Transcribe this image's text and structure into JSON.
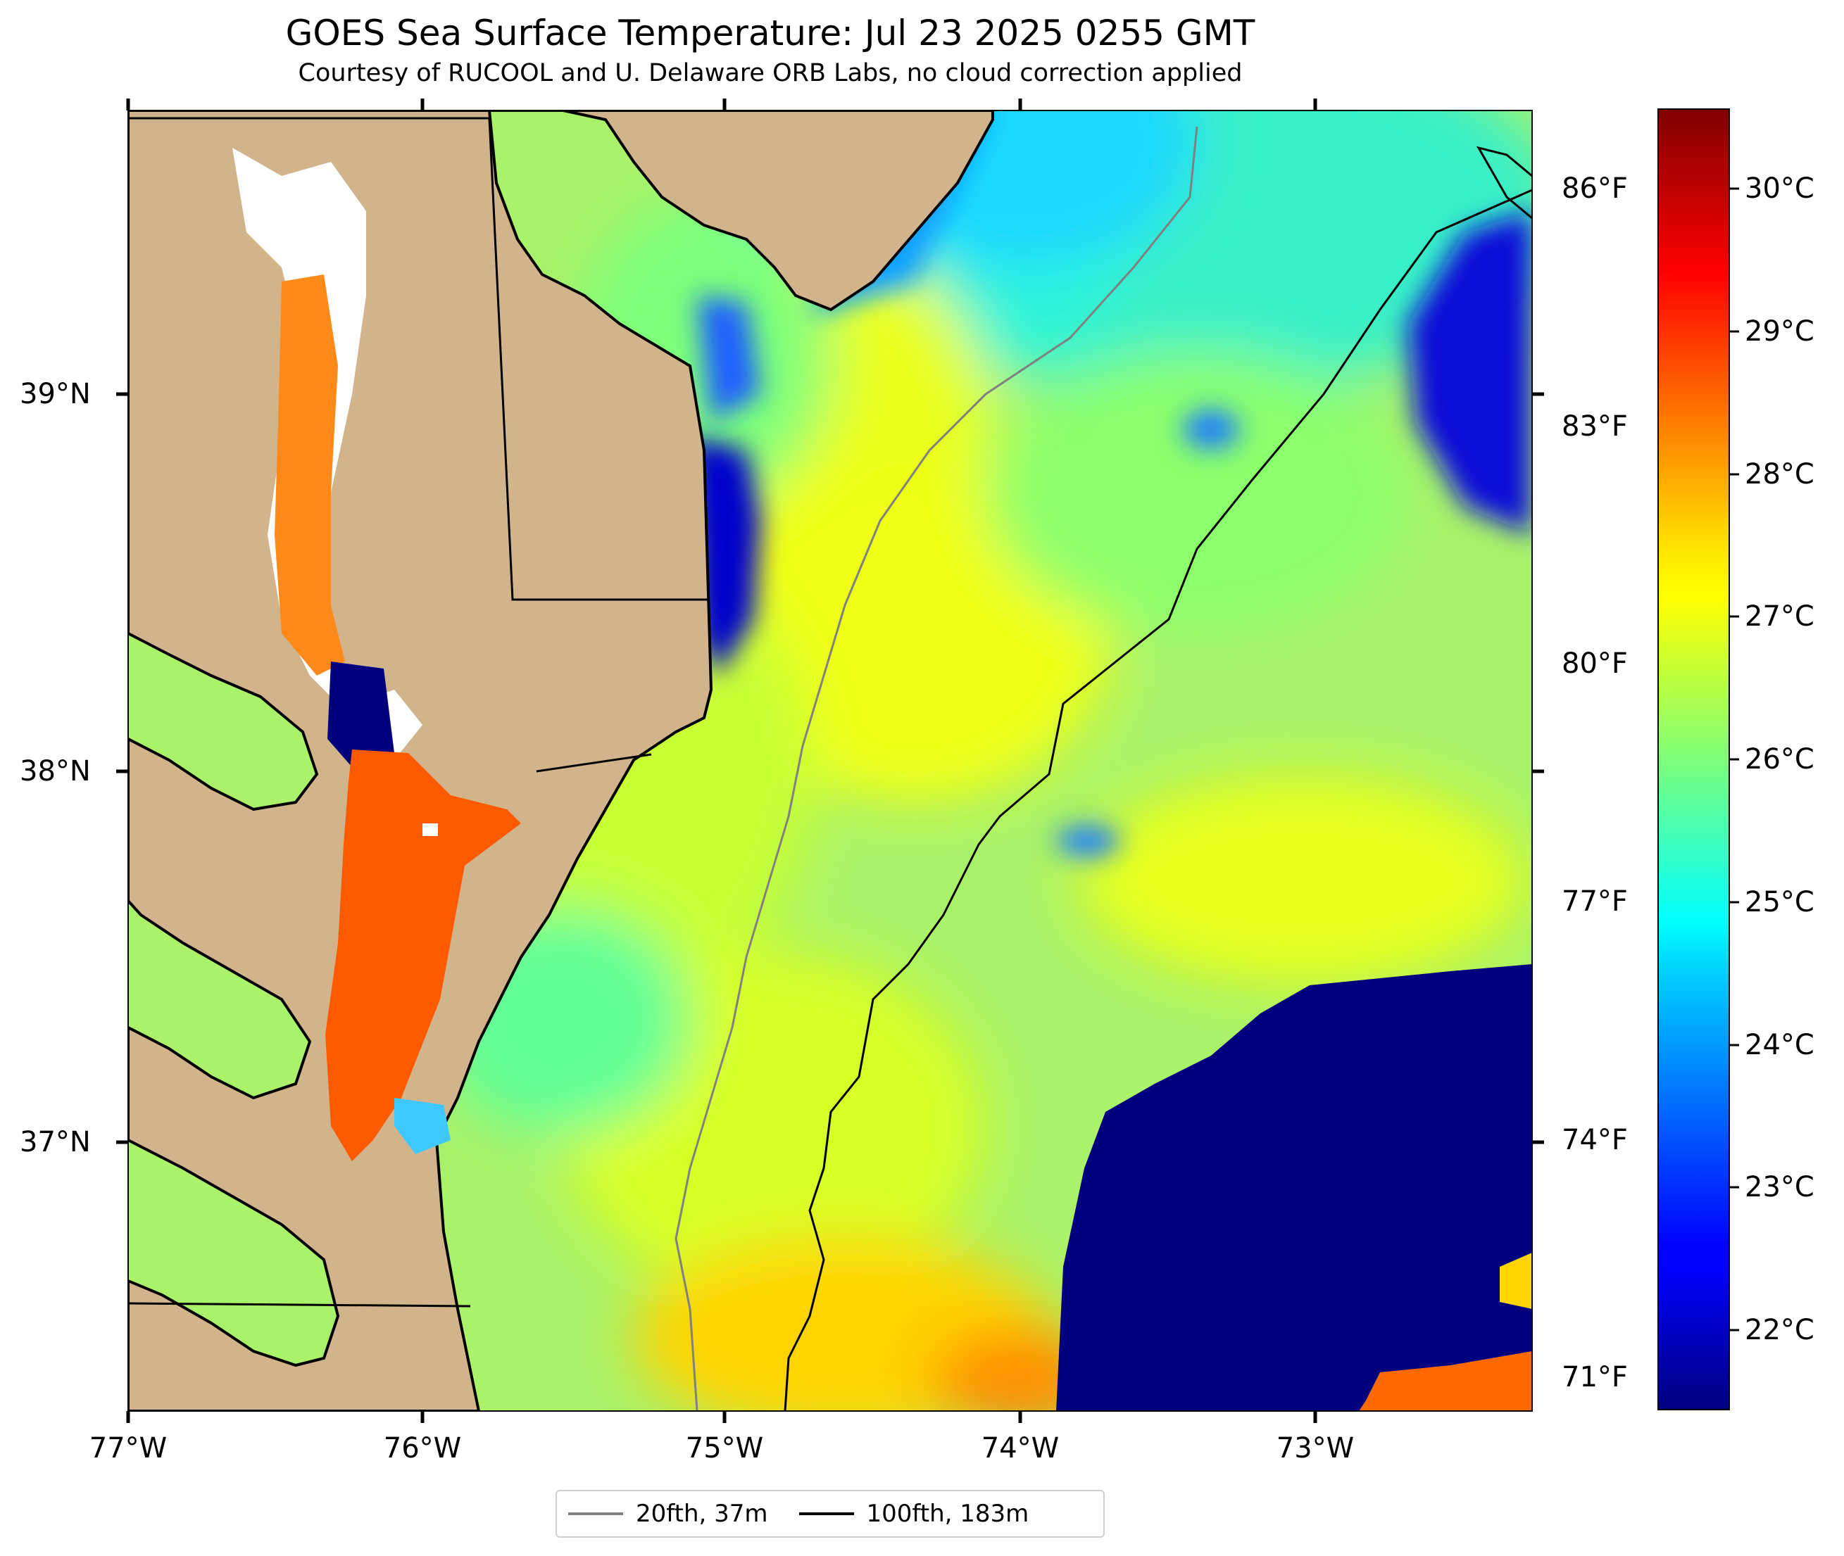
{
  "title": "GOES Sea Surface Temperature: Jul 23 2025 0255 GMT",
  "subtitle": "Courtesy of RUCOOL and U. Delaware ORB Labs, no cloud correction applied",
  "map": {
    "lon_range": [
      -77.0,
      -72.3
    ],
    "lat_range": [
      36.3,
      39.75
    ],
    "lon_ticks": [
      "77°W",
      "76°W",
      "75°W",
      "74°W",
      "73°W"
    ],
    "lat_ticks": [
      "39°N",
      "38°N",
      "37°N"
    ],
    "fahrenheit_ticks": [
      "86°F",
      "83°F",
      "80°F",
      "77°F",
      "74°F",
      "71°F"
    ],
    "land_color": "#d2b48c",
    "warm_color": "#ff6a00",
    "cold_color": "#00007f"
  },
  "colorbar": {
    "range_c": [
      21.5,
      30.5
    ],
    "colormap": "jet",
    "ticks": [
      "22°C",
      "23°C",
      "24°C",
      "25°C",
      "26°C",
      "27°C",
      "28°C",
      "29°C",
      "30°C"
    ]
  },
  "legend": {
    "items": [
      {
        "label": "20fth, 37m",
        "color": "#808080"
      },
      {
        "label": "100fth, 183m",
        "color": "#000000"
      }
    ]
  }
}
